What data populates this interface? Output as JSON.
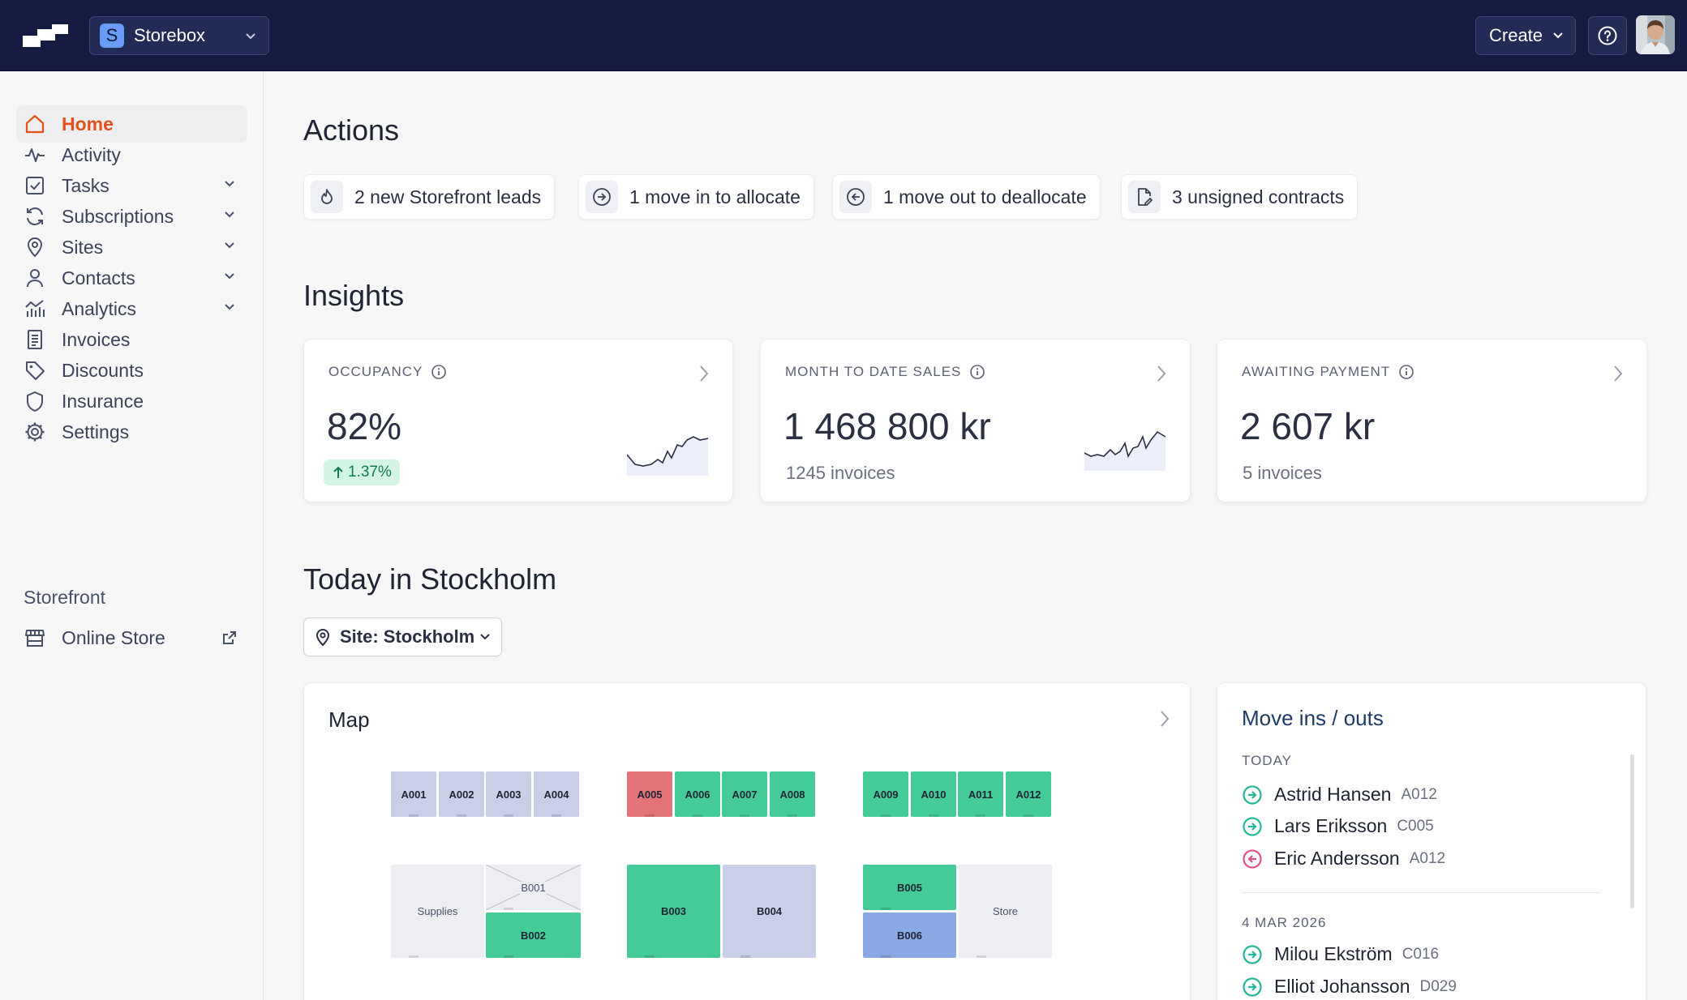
{
  "header": {
    "workspace": {
      "badge": "S",
      "name": "Storebox"
    },
    "create_label": "Create"
  },
  "sidebar": {
    "items": [
      {
        "label": "Home",
        "icon": "home-icon",
        "active": true
      },
      {
        "label": "Activity",
        "icon": "activity-icon"
      },
      {
        "label": "Tasks",
        "icon": "checkbox-icon",
        "expandable": true
      },
      {
        "label": "Subscriptions",
        "icon": "refresh-icon",
        "expandable": true
      },
      {
        "label": "Sites",
        "icon": "map-pin-icon",
        "expandable": true
      },
      {
        "label": "Contacts",
        "icon": "user-icon",
        "expandable": true
      },
      {
        "label": "Analytics",
        "icon": "chart-icon",
        "expandable": true
      },
      {
        "label": "Invoices",
        "icon": "receipt-icon"
      },
      {
        "label": "Discounts",
        "icon": "tag-icon"
      },
      {
        "label": "Insurance",
        "icon": "shield-icon"
      },
      {
        "label": "Settings",
        "icon": "gear-icon"
      }
    ],
    "section_title": "Storefront",
    "storefront_items": [
      {
        "label": "Online Store",
        "icon": "store-icon",
        "external": true
      }
    ]
  },
  "actions": {
    "title": "Actions",
    "items": [
      {
        "label": "2 new Storefront leads",
        "icon": "flame-icon"
      },
      {
        "label": "1 move in to allocate",
        "icon": "arrow-in-icon"
      },
      {
        "label": "1 move out to deallocate",
        "icon": "arrow-out-icon"
      },
      {
        "label": "3 unsigned contracts",
        "icon": "contract-icon"
      }
    ]
  },
  "insights": {
    "title": "Insights",
    "cards": [
      {
        "label": "OCCUPANCY",
        "value": "82%",
        "change": "1.37%",
        "trend": "up"
      },
      {
        "label": "MONTH TO DATE SALES",
        "value": "1 468 800 kr",
        "sub": "1245 invoices"
      },
      {
        "label": "AWAITING PAYMENT",
        "value": "2 607 kr",
        "sub": "5 invoices"
      }
    ]
  },
  "today": {
    "title": "Today in Stockholm",
    "site_filter": "Site: Stockholm"
  },
  "map": {
    "title": "Map",
    "units": {
      "A001": "A001",
      "A002": "A002",
      "A003": "A003",
      "A004": "A004",
      "A005": "A005",
      "A006": "A006",
      "A007": "A007",
      "A008": "A008",
      "A009": "A009",
      "A010": "A010",
      "A011": "A011",
      "A012": "A012",
      "supplies": "Supplies",
      "B001": "B001",
      "B002": "B002",
      "B003": "B003",
      "B004": "B004",
      "B005": "B005",
      "B006": "B006",
      "store": "Store"
    },
    "status_colors": {
      "vacant": "#c9cfe6",
      "occupied": "#45cb98",
      "overdue": "#e4747a",
      "reserved": "#89a8e4",
      "non_rentable": "#eceef1"
    }
  },
  "moves": {
    "title": "Move ins / outs",
    "groups": [
      {
        "label": "TODAY",
        "entries": [
          {
            "name": "Astrid Hansen",
            "unit": "A012",
            "direction": "in"
          },
          {
            "name": "Lars Eriksson",
            "unit": "C005",
            "direction": "in"
          },
          {
            "name": "Eric Andersson",
            "unit": "A012",
            "direction": "out"
          }
        ]
      },
      {
        "label": "4 MAR 2026",
        "entries": [
          {
            "name": "Milou Ekström",
            "unit": "C016",
            "direction": "in"
          },
          {
            "name": "Elliot Johansson",
            "unit": "D029",
            "direction": "in"
          }
        ]
      }
    ]
  },
  "colors": {
    "brand_nav": "#161b41",
    "accent": "#e4511c",
    "move_in": "#26b89a",
    "move_out": "#e0508a"
  }
}
